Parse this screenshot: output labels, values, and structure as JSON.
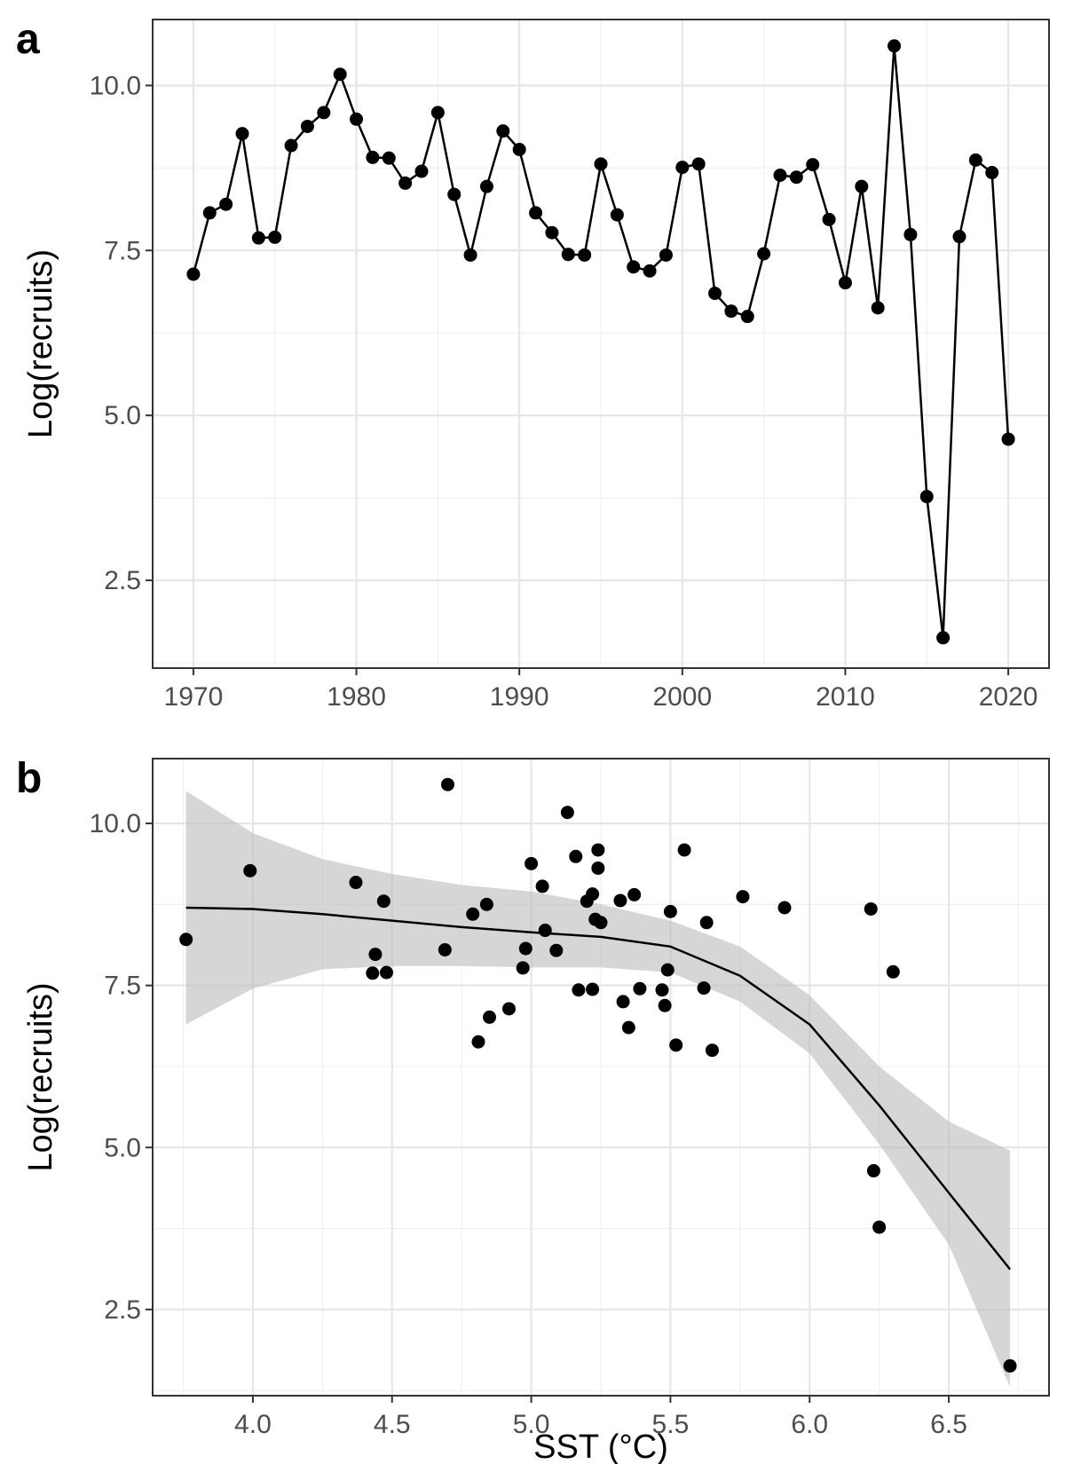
{
  "chart_data": [
    {
      "panel": "a",
      "type": "line",
      "xlabel": "",
      "ylabel": "Log(recruits)",
      "xlim": [
        1967.5,
        2022.5
      ],
      "ylim": [
        1.17,
        11.0
      ],
      "x_ticks": [
        1970,
        1980,
        1990,
        2000,
        2010,
        2020
      ],
      "x_tick_labels": [
        "1970",
        "1980",
        "1990",
        "2000",
        "2010",
        "2020"
      ],
      "y_ticks": [
        2.5,
        5.0,
        7.5,
        10.0
      ],
      "y_tick_labels": [
        "2.5",
        "5.0",
        "7.5",
        "10.0"
      ],
      "grid": true,
      "series": [
        {
          "x": [
            1970,
            1971,
            1972,
            1973,
            1974,
            1975,
            1976,
            1977,
            1978,
            1979,
            1980,
            1981,
            1982,
            1983,
            1984,
            1985,
            1986,
            1987,
            1988,
            1989,
            1990,
            1991,
            1992,
            1993,
            1994,
            1995,
            1996,
            1997,
            1998,
            1999,
            2000,
            2001,
            2002,
            2003,
            2004,
            2005,
            2006,
            2007,
            2008,
            2009,
            2010,
            2011,
            2012,
            2013,
            2014,
            2015,
            2016,
            2017,
            2018,
            2019,
            2020
          ],
          "y": [
            7.14,
            8.07,
            8.2,
            9.27,
            7.69,
            7.7,
            9.09,
            9.38,
            9.59,
            10.17,
            9.49,
            8.91,
            8.9,
            8.52,
            8.7,
            9.59,
            8.35,
            7.43,
            8.47,
            9.31,
            9.03,
            8.07,
            7.77,
            7.44,
            7.43,
            8.81,
            8.04,
            7.25,
            7.19,
            7.43,
            8.76,
            8.81,
            6.85,
            6.58,
            6.5,
            7.45,
            8.64,
            8.61,
            8.8,
            7.97,
            7.01,
            8.47,
            6.63,
            10.6,
            7.74,
            3.77,
            1.63,
            7.71,
            8.87,
            8.68,
            4.64
          ]
        }
      ]
    },
    {
      "panel": "b",
      "type": "scatter",
      "xlabel": "SST (°C)",
      "ylabel": "Log(recruits)",
      "xlim": [
        3.64,
        6.86
      ],
      "ylim": [
        1.17,
        11.0
      ],
      "x_ticks": [
        4.0,
        4.5,
        5.0,
        5.5,
        6.0,
        6.5
      ],
      "x_tick_labels": [
        "4.0",
        "4.5",
        "5.0",
        "5.5",
        "6.0",
        "6.5"
      ],
      "y_ticks": [
        2.5,
        5.0,
        7.5,
        10.0
      ],
      "y_tick_labels": [
        "2.5",
        "5.0",
        "7.5",
        "10.0"
      ],
      "grid": true,
      "points": {
        "x": [
          3.76,
          3.99,
          4.37,
          4.43,
          4.44,
          4.47,
          4.48,
          4.69,
          4.7,
          4.79,
          4.81,
          4.84,
          4.85,
          4.92,
          4.97,
          4.98,
          5.0,
          5.04,
          5.05,
          5.09,
          5.13,
          5.16,
          5.17,
          5.2,
          5.22,
          5.22,
          5.23,
          5.24,
          5.24,
          5.25,
          5.32,
          5.33,
          5.35,
          5.37,
          5.39,
          5.47,
          5.48,
          5.49,
          5.5,
          5.52,
          5.55,
          5.62,
          5.63,
          5.65,
          5.76,
          5.91,
          6.22,
          6.23,
          6.25,
          6.3,
          6.72
        ],
        "y": [
          8.21,
          9.27,
          9.09,
          7.69,
          7.98,
          8.8,
          7.7,
          8.05,
          10.6,
          8.6,
          6.63,
          8.75,
          7.01,
          7.14,
          7.77,
          8.07,
          9.38,
          9.03,
          8.35,
          8.04,
          10.17,
          9.49,
          7.43,
          8.8,
          8.91,
          7.44,
          8.52,
          9.31,
          9.59,
          8.47,
          8.81,
          7.25,
          6.85,
          8.9,
          7.45,
          7.43,
          7.19,
          7.74,
          8.64,
          6.58,
          9.59,
          7.46,
          8.47,
          6.5,
          8.87,
          8.7,
          8.68,
          4.64,
          3.77,
          7.71,
          1.63
        ]
      },
      "smooth": {
        "x": [
          3.76,
          4.0,
          4.25,
          4.5,
          4.75,
          5.0,
          5.25,
          5.5,
          5.75,
          6.0,
          6.25,
          6.5,
          6.72
        ],
        "y": [
          8.7,
          8.68,
          8.6,
          8.5,
          8.4,
          8.32,
          8.25,
          8.1,
          7.65,
          6.9,
          5.65,
          4.3,
          3.12
        ],
        "ci_lower": [
          6.9,
          7.45,
          7.75,
          7.8,
          7.8,
          7.78,
          7.78,
          7.7,
          7.25,
          6.45,
          5.05,
          3.5,
          1.3
        ],
        "ci_upper": [
          10.5,
          9.85,
          9.45,
          9.22,
          9.05,
          8.95,
          8.75,
          8.5,
          8.1,
          7.35,
          6.25,
          5.4,
          4.95
        ]
      }
    }
  ]
}
